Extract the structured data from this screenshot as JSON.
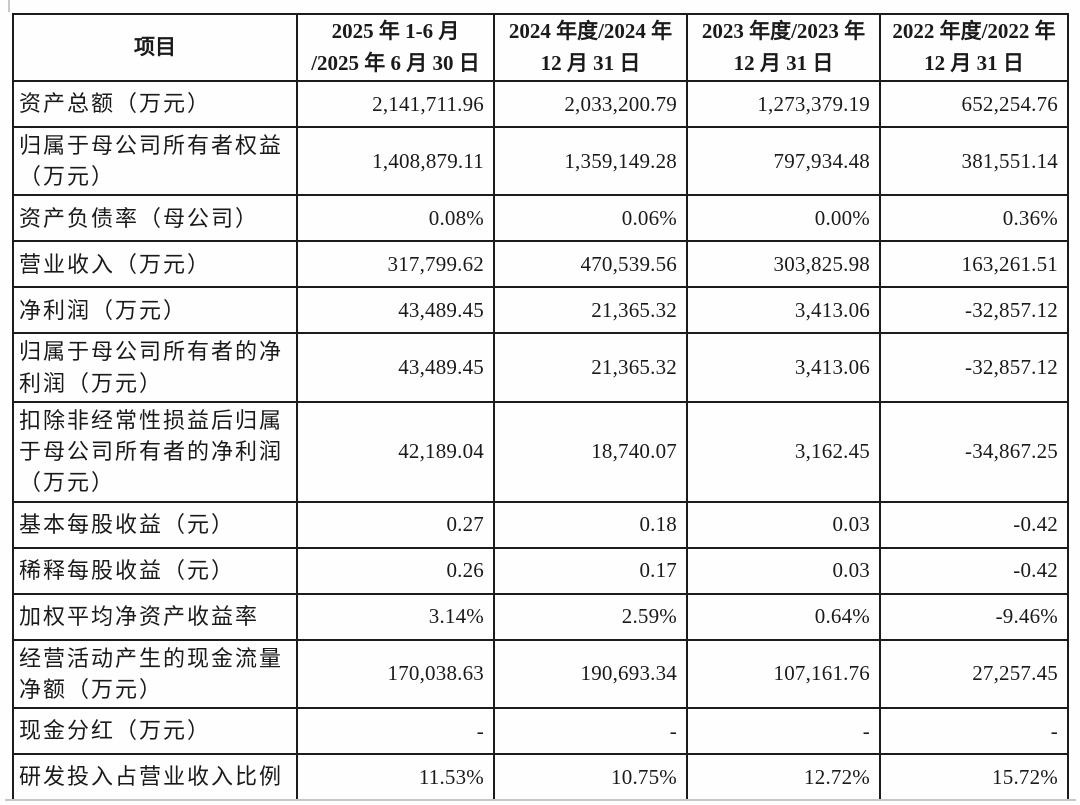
{
  "table": {
    "header": {
      "item_label": "项目",
      "periods": [
        {
          "line1": "2025 年 1-6 月",
          "line2": "/2025 年 6 月 30 日"
        },
        {
          "line1": "2024 年度/2024 年",
          "line2": "12 月 31 日"
        },
        {
          "line1": "2023 年度/2023 年",
          "line2": "12 月 31 日"
        },
        {
          "line1": "2022 年度/2022 年",
          "line2": "12 月 31 日"
        }
      ]
    },
    "rows": [
      {
        "label": "资产总额（万元）",
        "values": [
          "2,141,711.96",
          "2,033,200.79",
          "1,273,379.19",
          "652,254.76"
        ]
      },
      {
        "label": "归属于母公司所有者权益（万元）",
        "values": [
          "1,408,879.11",
          "1,359,149.28",
          "797,934.48",
          "381,551.14"
        ]
      },
      {
        "label": "资产负债率（母公司）",
        "values": [
          "0.08%",
          "0.06%",
          "0.00%",
          "0.36%"
        ]
      },
      {
        "label": "营业收入（万元）",
        "values": [
          "317,799.62",
          "470,539.56",
          "303,825.98",
          "163,261.51"
        ]
      },
      {
        "label": "净利润（万元）",
        "values": [
          "43,489.45",
          "21,365.32",
          "3,413.06",
          "-32,857.12"
        ]
      },
      {
        "label": "归属于母公司所有者的净利润（万元）",
        "values": [
          "43,489.45",
          "21,365.32",
          "3,413.06",
          "-32,857.12"
        ]
      },
      {
        "label": "扣除非经常性损益后归属于母公司所有者的净利润（万元）",
        "values": [
          "42,189.04",
          "18,740.07",
          "3,162.45",
          "-34,867.25"
        ]
      },
      {
        "label": "基本每股收益（元）",
        "values": [
          "0.27",
          "0.18",
          "0.03",
          "-0.42"
        ]
      },
      {
        "label": "稀释每股收益（元）",
        "values": [
          "0.26",
          "0.17",
          "0.03",
          "-0.42"
        ]
      },
      {
        "label": "加权平均净资产收益率",
        "values": [
          "3.14%",
          "2.59%",
          "0.64%",
          "-9.46%"
        ]
      },
      {
        "label": "经营活动产生的现金流量净额（万元）",
        "values": [
          "170,038.63",
          "190,693.34",
          "107,161.76",
          "27,257.45"
        ]
      },
      {
        "label": "现金分红（万元）",
        "values": [
          "-",
          "-",
          "-",
          "-"
        ]
      },
      {
        "label": "研发投入占营业收入比例",
        "values": [
          "11.53%",
          "10.75%",
          "12.72%",
          "15.72%"
        ]
      }
    ]
  },
  "colors": {
    "border": "#1c1c1c",
    "text": "#1a1a1a",
    "background": "#fefefe"
  }
}
